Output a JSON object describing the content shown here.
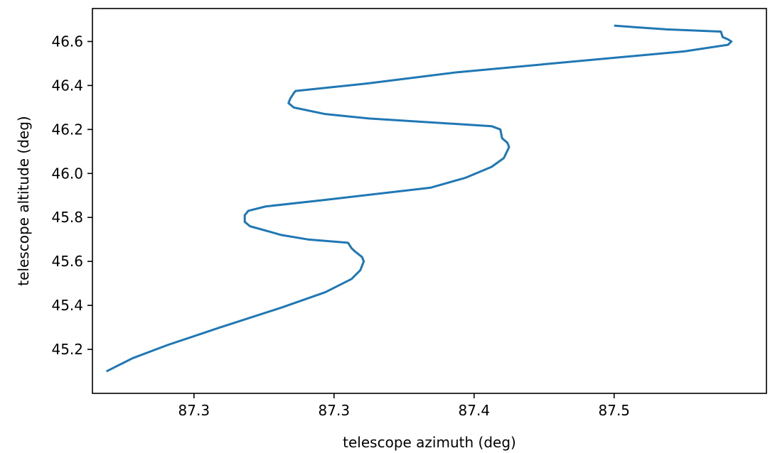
{
  "chart_data": {
    "type": "line",
    "title": "",
    "xlabel": "telescope azimuth (deg)",
    "ylabel": "telescope altitude (deg)",
    "xlim": [
      87.192,
      87.577
    ],
    "ylim": [
      45.0,
      46.75
    ],
    "grid": false,
    "legend": "none",
    "x_ticks": [
      {
        "value": 87.25,
        "label": "87.3"
      },
      {
        "value": 87.33,
        "label": "87.3"
      },
      {
        "value": 87.41,
        "label": "87.4"
      },
      {
        "value": 87.49,
        "label": "87.5"
      }
    ],
    "y_ticks": [
      {
        "value": 45.2,
        "label": "45.2"
      },
      {
        "value": 45.4,
        "label": "45.4"
      },
      {
        "value": 45.6,
        "label": "45.6"
      },
      {
        "value": 45.8,
        "label": "45.8"
      },
      {
        "value": 46.0,
        "label": "46.0"
      },
      {
        "value": 46.2,
        "label": "46.2"
      },
      {
        "value": 46.4,
        "label": "46.4"
      },
      {
        "value": 46.6,
        "label": "46.6"
      }
    ],
    "series": [
      {
        "color": "#1f77b4",
        "x": [
          87.2,
          87.205,
          87.215,
          87.235,
          87.265,
          87.3,
          87.325,
          87.34,
          87.345,
          87.347,
          87.346,
          87.342,
          87.34,
          87.338,
          87.315,
          87.3,
          87.282,
          87.279,
          87.279,
          87.281,
          87.291,
          87.325,
          87.385,
          87.405,
          87.42,
          87.427,
          87.43,
          87.429,
          87.426,
          87.425,
          87.42,
          87.35,
          87.325,
          87.307,
          87.304,
          87.305,
          87.307,
          87.308,
          87.35,
          87.4,
          87.53,
          87.555,
          87.557,
          87.555,
          87.552,
          87.551,
          87.52,
          87.49
        ],
        "y": [
          45.1,
          45.12,
          45.16,
          45.22,
          45.3,
          45.39,
          45.46,
          45.52,
          45.56,
          45.6,
          45.62,
          45.645,
          45.66,
          45.685,
          45.7,
          45.72,
          45.76,
          45.78,
          45.81,
          45.83,
          45.85,
          45.88,
          45.935,
          45.98,
          46.03,
          46.07,
          46.12,
          46.14,
          46.16,
          46.2,
          46.215,
          46.25,
          46.27,
          46.3,
          46.32,
          46.34,
          46.365,
          46.375,
          46.41,
          46.46,
          46.555,
          46.585,
          46.6,
          46.61,
          46.62,
          46.645,
          46.655,
          46.672
        ]
      }
    ]
  }
}
